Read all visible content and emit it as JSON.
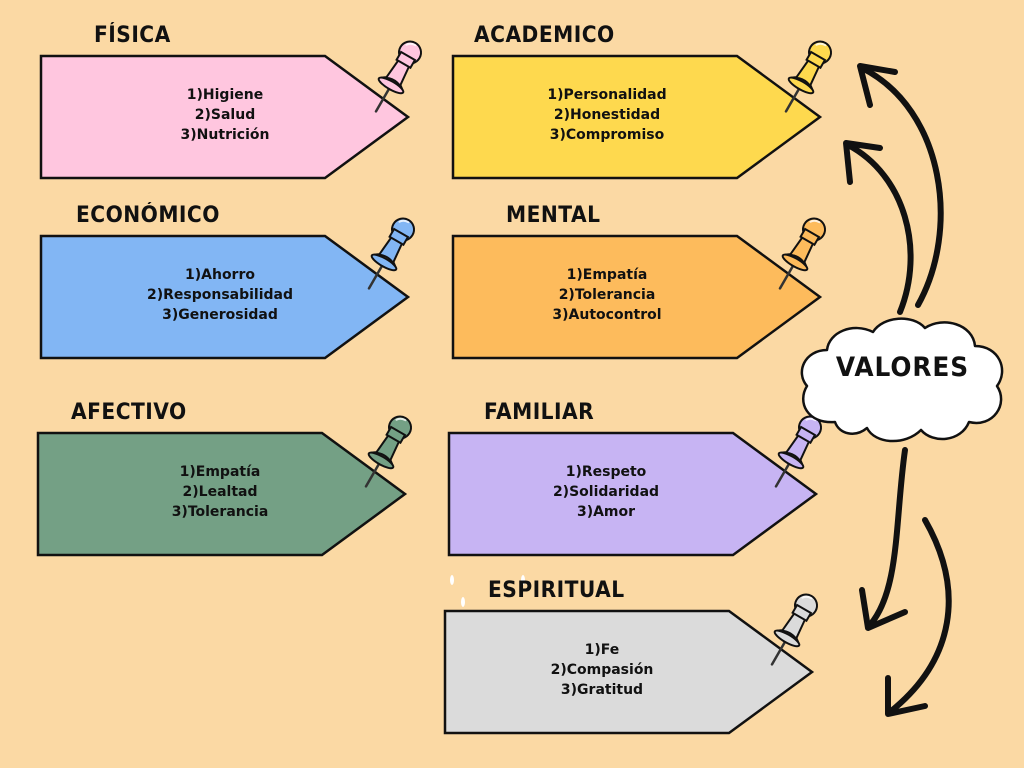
{
  "center": {
    "label": "VALORES"
  },
  "cards": [
    {
      "title": "FÍSICA",
      "color": "#ffc6df",
      "pin": "#ffc6df",
      "items": [
        "1)Higiene",
        "2)Salud",
        "3)Nutrición"
      ]
    },
    {
      "title": "ACADEMICO",
      "color": "#fed94e",
      "pin": "#fed94e",
      "items": [
        "1)Personalidad",
        "2)Honestidad",
        "3)Compromiso"
      ]
    },
    {
      "title": "ECONÓMICO",
      "color": "#82b6f4",
      "pin": "#82b6f4",
      "items": [
        "1)Ahorro",
        "2)Responsabilidad",
        "3)Generosidad"
      ]
    },
    {
      "title": "MENTAL",
      "color": "#fdbb5c",
      "pin": "#fdbb5c",
      "items": [
        "1)Empatía",
        "2)Tolerancia",
        "3)Autocontrol"
      ]
    },
    {
      "title": "AFECTIVO",
      "color": "#74a085",
      "pin": "#74a085",
      "items": [
        "1)Empatía",
        "2)Lealtad",
        "3)Tolerancia"
      ]
    },
    {
      "title": "FAMILIAR",
      "color": "#c7b4f3",
      "pin": "#c7b4f3",
      "items": [
        "1)Respeto",
        "2)Solidaridad",
        "3)Amor"
      ]
    },
    {
      "title": "ESPIRITUAL",
      "color": "#dbdbdb",
      "pin": "#dbdbdb",
      "items": [
        "1)Fe",
        "2)Compasión",
        "3)Gratitud"
      ]
    }
  ]
}
